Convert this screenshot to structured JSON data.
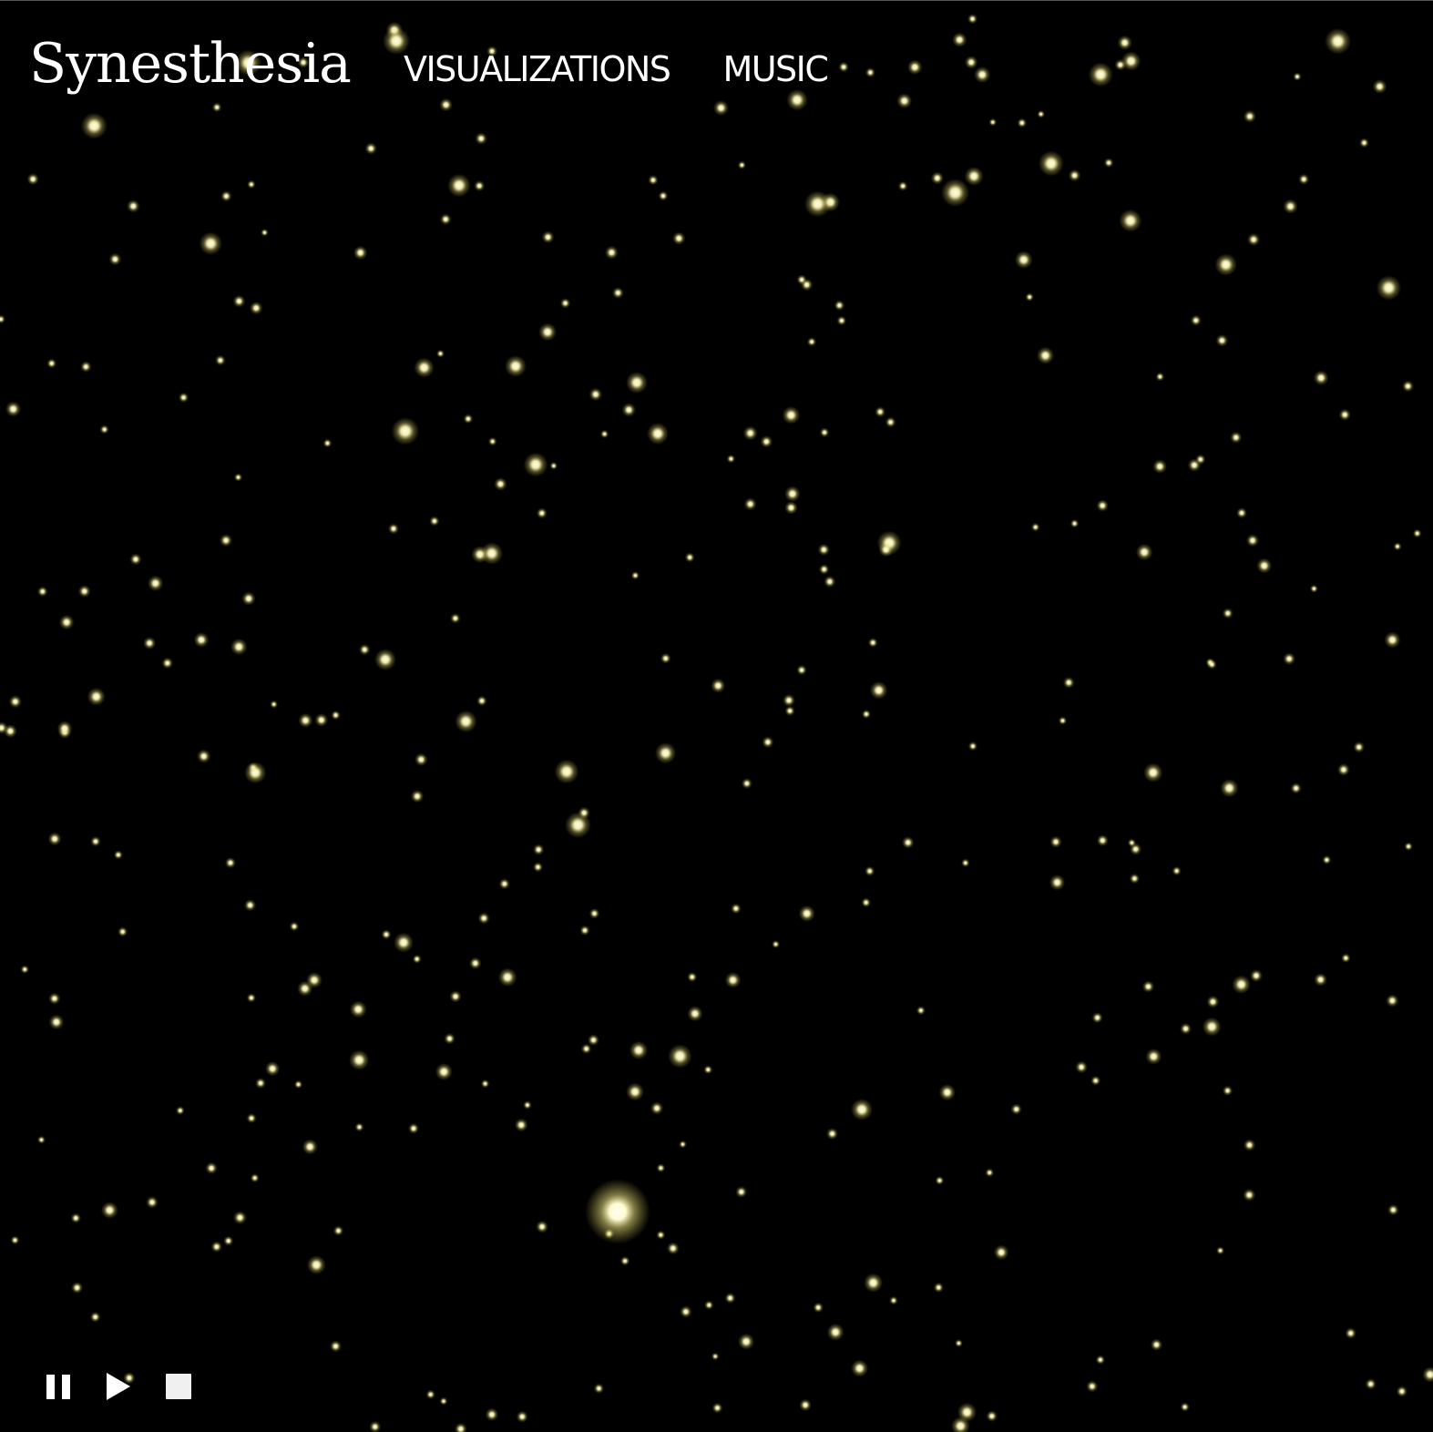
{
  "header": {
    "brand": "Synesthesia",
    "nav": [
      {
        "label": "VISUALIZATIONS"
      },
      {
        "label": "MUSIC"
      }
    ]
  },
  "canvas": {
    "background": "#000000",
    "star_color": "#fff7b0"
  },
  "controls": {
    "pause_icon": "pause-icon",
    "play_icon": "play-icon",
    "stop_icon": "stop-icon"
  }
}
